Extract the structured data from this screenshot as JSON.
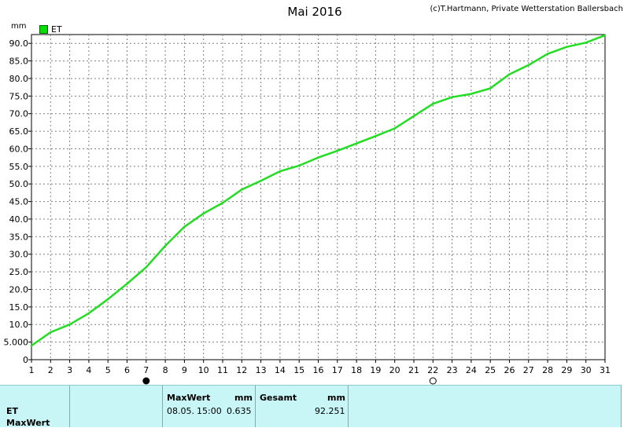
{
  "header": {
    "title": "Mai 2016",
    "copyright": "(c)T.Hartmann, Private Wetterstation Ballersbach",
    "unit": "mm"
  },
  "legend": {
    "label": "ET",
    "color": "#22dd22"
  },
  "colors": {
    "line": "#22dd22",
    "grid": "#808080",
    "axis": "#000000",
    "panel_bg": "#c8f5f5"
  },
  "chart_data": {
    "type": "line",
    "x": [
      1,
      2,
      3,
      4,
      5,
      6,
      7,
      8,
      9,
      10,
      11,
      12,
      13,
      14,
      15,
      16,
      17,
      18,
      19,
      20,
      21,
      22,
      23,
      24,
      25,
      26,
      27,
      28,
      29,
      30,
      31
    ],
    "series": [
      {
        "name": "ET",
        "values": [
          4.0,
          7.8,
          10.0,
          13.2,
          17.2,
          21.6,
          26.3,
          32.4,
          37.8,
          41.6,
          44.6,
          48.4,
          50.9,
          53.6,
          55.2,
          57.5,
          59.4,
          61.5,
          63.6,
          65.8,
          69.3,
          72.8,
          74.7,
          75.6,
          77.2,
          81.2,
          83.8,
          87.0,
          89.0,
          90.2,
          92.3
        ]
      }
    ],
    "xlim": [
      1,
      31
    ],
    "ylim": [
      0,
      92.5
    ],
    "y_ticks": [
      "0",
      "5.000",
      "10.0",
      "15.0",
      "20.0",
      "25.0",
      "30.0",
      "35.0",
      "40.0",
      "45.0",
      "50.0",
      "55.0",
      "60.0",
      "65.0",
      "70.0",
      "75.0",
      "80.0",
      "85.0",
      "90.0"
    ],
    "x_ticks": [
      "1",
      "2",
      "3",
      "4",
      "5",
      "6",
      "7",
      "8",
      "9",
      "10",
      "11",
      "12",
      "13",
      "14",
      "15",
      "16",
      "17",
      "18",
      "19",
      "20",
      "21",
      "22",
      "23",
      "24",
      "25",
      "26",
      "27",
      "28",
      "29",
      "30",
      "31"
    ],
    "grid": true,
    "markers": [
      {
        "day": 7,
        "symbol": "new-moon"
      },
      {
        "day": 22,
        "symbol": "full-moon"
      }
    ]
  },
  "panel": {
    "row_labels": [
      "ET",
      "MaxWert"
    ],
    "max_header": "MaxWert",
    "max_unit": "mm",
    "max_date": "08.05.",
    "max_time": "15:00",
    "max_value": "0.635",
    "total_header": "Gesamt",
    "total_unit": "mm",
    "total_value": "92.251"
  }
}
